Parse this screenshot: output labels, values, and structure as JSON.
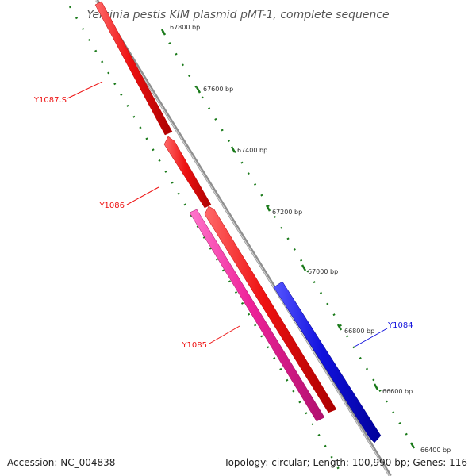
{
  "title": "Yersinia pestis KIM plasmid pMT-1, complete sequence",
  "footer": {
    "accession": "Accession: NC_004838",
    "summary": "Topology: circular; Length: 100,990 bp; Genes: 116"
  },
  "colors": {
    "background": "#ffffff",
    "backbone": "#8f8f8f",
    "tick": "#1a7a1a",
    "gene_red": "#ee1111",
    "gene_pink": "#ee2299",
    "gene_blue": "#1111dd"
  },
  "scale": {
    "ticks": [
      {
        "label": "67800 bp"
      },
      {
        "label": "67600 bp"
      },
      {
        "label": "67400 bp"
      },
      {
        "label": "67200 bp"
      },
      {
        "label": "67000 bp"
      },
      {
        "label": "66800 bp"
      },
      {
        "label": "66600 bp"
      },
      {
        "label": "66400 bp"
      }
    ]
  },
  "genes": [
    {
      "name": "Y1087.S",
      "label": "Y1087.S",
      "color": "#ee1111",
      "strand": "reverse",
      "track": "outer-left"
    },
    {
      "name": "Y1086",
      "label": "Y1086",
      "color": "#ee1111",
      "strand": "reverse",
      "track": "outer-left"
    },
    {
      "name": "Y1085-red",
      "label": "",
      "color": "#ee1111",
      "strand": "reverse",
      "track": "outer-left"
    },
    {
      "name": "Y1085",
      "label": "Y1085",
      "color": "#ee2299",
      "strand": "reverse",
      "track": "inner-left"
    },
    {
      "name": "Y1084",
      "label": "Y1084",
      "color": "#1111dd",
      "strand": "forward",
      "track": "right"
    }
  ]
}
